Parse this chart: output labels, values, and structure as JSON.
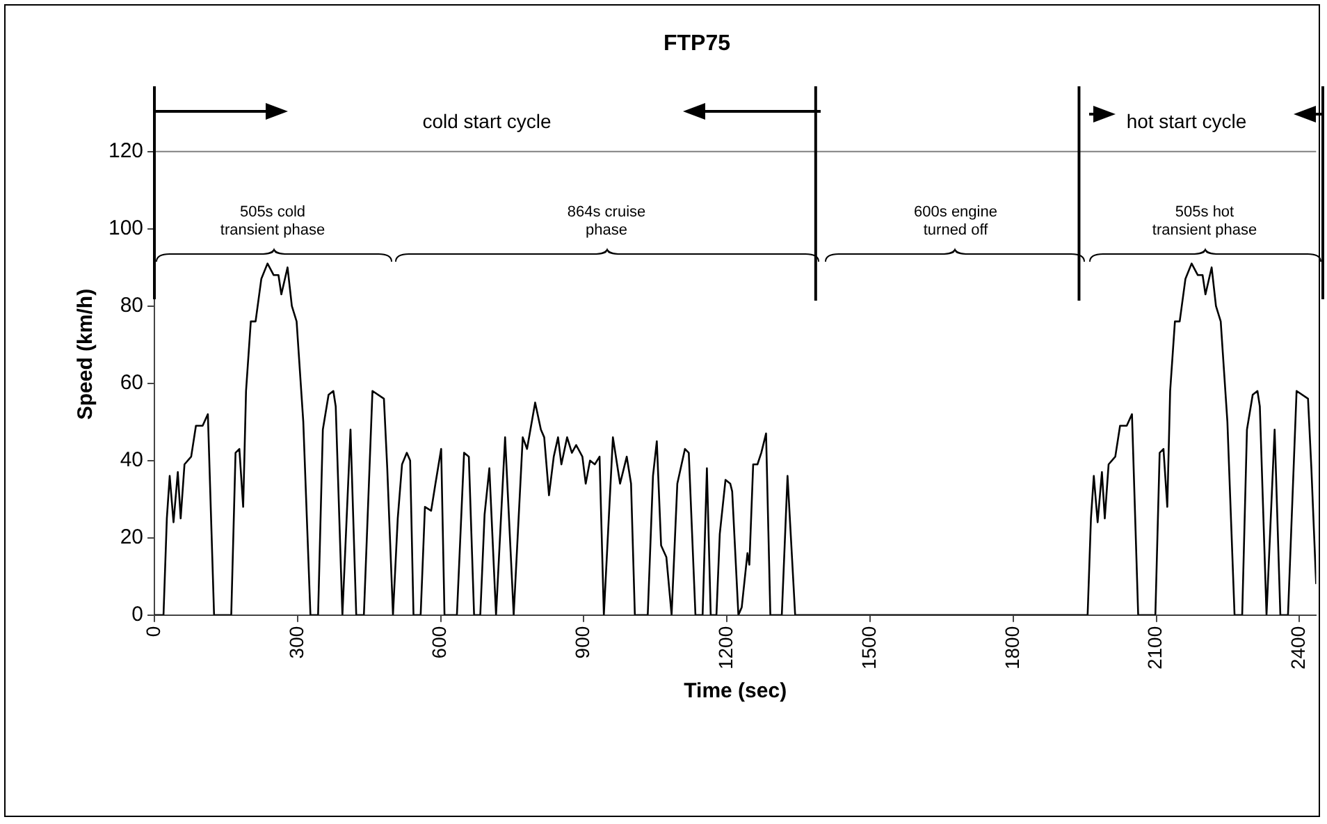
{
  "chart_data": {
    "type": "line",
    "title": "FTP75",
    "xlabel": "Time (sec)",
    "ylabel": "Speed (km/h)",
    "xlim": [
      0,
      2435
    ],
    "xticks": [
      0,
      300,
      600,
      900,
      1200,
      1500,
      1800,
      2100,
      2400
    ],
    "ylim": [
      0,
      135
    ],
    "yticks": [
      0,
      20,
      40,
      60,
      80,
      100,
      120
    ],
    "grid": false,
    "legend": false,
    "marker": "none",
    "line_style": "solid",
    "series": [
      {
        "color": "#000000",
        "x": [
          0,
          19,
          26,
          32,
          40,
          49,
          55,
          63,
          77,
          87,
          101,
          112,
          125,
          161,
          170,
          178,
          186,
          192,
          202,
          212,
          224,
          237,
          250,
          260,
          266,
          279,
          288,
          298,
          312,
          327,
          343,
          353,
          365,
          375,
          380,
          394,
          411,
          423,
          439,
          457,
          481,
          488,
          500,
          510,
          519,
          529,
          536,
          543,
          558,
          567,
          580,
          589,
          601,
          608,
          634,
          649,
          659,
          670,
          683,
          692,
          702,
          716,
          735,
          753,
          772,
          781,
          798,
          810,
          817,
          827,
          837,
          846,
          853,
          865,
          875,
          884,
          897,
          904,
          913,
          923,
          933,
          942,
          961,
          976,
          990,
          999,
          1007,
          1034,
          1045,
          1053,
          1062,
          1073,
          1084,
          1096,
          1112,
          1120,
          1134,
          1149,
          1158,
          1166,
          1178,
          1185,
          1197,
          1207,
          1211,
          1224,
          1231,
          1243,
          1247,
          1255,
          1264,
          1272,
          1282,
          1291,
          1315,
          1327,
          1343,
          1956,
          1963,
          1969,
          1977,
          1986,
          1992,
          2000,
          2014,
          2024,
          2038,
          2049,
          2062,
          2098,
          2107,
          2115,
          2123,
          2129,
          2139,
          2149,
          2161,
          2174,
          2187,
          2197,
          2203,
          2216,
          2225,
          2235,
          2249,
          2264,
          2280,
          2290,
          2302,
          2312,
          2317,
          2331,
          2348,
          2360,
          2376,
          2394,
          2418,
          2425,
          2435
        ],
        "values": [
          0,
          0,
          25,
          36,
          24,
          37,
          25,
          39,
          41,
          49,
          49,
          52,
          0,
          0,
          42,
          43,
          28,
          58,
          76,
          76,
          87,
          91,
          88,
          88,
          83,
          90,
          80,
          76,
          50,
          0,
          0,
          48,
          57,
          58,
          54,
          0,
          48,
          0,
          0,
          58,
          56,
          38,
          0,
          25,
          39,
          42,
          40,
          0,
          0,
          28,
          27,
          34,
          43,
          0,
          0,
          42,
          41,
          0,
          0,
          26,
          38,
          0,
          46,
          0,
          46,
          43,
          55,
          48,
          46,
          31,
          41,
          46,
          39,
          46,
          42,
          44,
          41,
          34,
          40,
          39,
          41,
          0,
          46,
          34,
          41,
          34,
          0,
          0,
          36,
          45,
          18,
          15,
          0,
          34,
          43,
          42,
          0,
          0,
          38,
          0,
          0,
          21,
          35,
          34,
          32,
          0,
          2,
          16,
          13,
          39,
          39,
          42,
          47,
          0,
          0,
          36,
          0,
          0,
          25,
          36,
          24,
          37,
          25,
          39,
          41,
          49,
          49,
          52,
          0,
          0,
          42,
          43,
          28,
          58,
          76,
          76,
          87,
          91,
          88,
          88,
          83,
          90,
          80,
          76,
          50,
          0,
          0,
          48,
          57,
          58,
          54,
          0,
          48,
          0,
          0,
          58,
          56,
          38,
          8
        ]
      }
    ],
    "ref_lines": [
      {
        "axis": "y",
        "value": 120,
        "color": "#808080"
      },
      {
        "axis": "x",
        "value": 1386
      },
      {
        "axis": "x",
        "value": 1938
      }
    ],
    "annotations": [
      "cold start cycle",
      "hot start cycle",
      "505s cold\ntransient phase",
      "864s cruise\nphase",
      "600s engine\nturned off",
      "505s hot\ntransient phase"
    ]
  }
}
